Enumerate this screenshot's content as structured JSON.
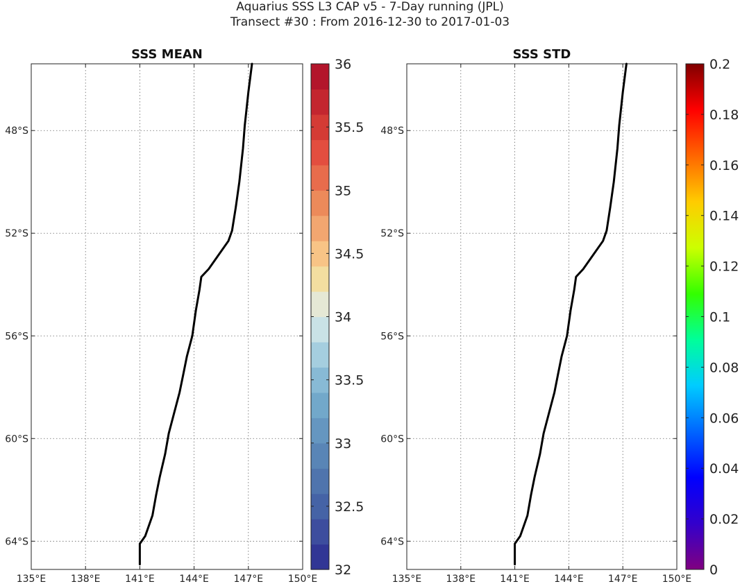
{
  "figure": {
    "title_line1": "Aquarius SSS L3 CAP v5 - 7-Day running (JPL)",
    "title_line2": "Transect #30 : From 2016-12-30 to 2017-01-03"
  },
  "chart_data": [
    {
      "type": "line",
      "title": "SSS MEAN",
      "xlabel": "",
      "ylabel": "",
      "x_ticks": [
        {
          "value": 135,
          "label": "135°E"
        },
        {
          "value": 138,
          "label": "138°E"
        },
        {
          "value": 141,
          "label": "141°E"
        },
        {
          "value": 144,
          "label": "144°E"
        },
        {
          "value": 147,
          "label": "147°E"
        },
        {
          "value": 150,
          "label": "150°E"
        }
      ],
      "y_ticks": [
        {
          "value": -48,
          "label": "48°S"
        },
        {
          "value": -52,
          "label": "52°S"
        },
        {
          "value": -56,
          "label": "56°S"
        },
        {
          "value": -60,
          "label": "60°S"
        },
        {
          "value": -64,
          "label": "64°S"
        }
      ],
      "xlim": [
        135,
        150
      ],
      "ylim": [
        -65.1,
        -45.4
      ],
      "grid": true,
      "series": [
        {
          "color": "#000000",
          "points": [
            [
              147.2,
              -45.4
            ],
            [
              147.0,
              -46.5
            ],
            [
              146.8,
              -47.8
            ],
            [
              146.7,
              -48.7
            ],
            [
              146.5,
              -50.0
            ],
            [
              146.3,
              -51.0
            ],
            [
              146.1,
              -51.9
            ],
            [
              145.9,
              -52.3
            ],
            [
              145.3,
              -52.9
            ],
            [
              144.8,
              -53.4
            ],
            [
              144.4,
              -53.7
            ],
            [
              144.3,
              -54.2
            ],
            [
              144.1,
              -55.0
            ],
            [
              143.9,
              -56.0
            ],
            [
              143.6,
              -56.8
            ],
            [
              143.4,
              -57.5
            ],
            [
              143.2,
              -58.2
            ],
            [
              142.9,
              -59.0
            ],
            [
              142.6,
              -59.8
            ],
            [
              142.4,
              -60.6
            ],
            [
              142.1,
              -61.5
            ],
            [
              141.9,
              -62.2
            ],
            [
              141.7,
              -63.0
            ],
            [
              141.3,
              -63.8
            ],
            [
              141.0,
              -64.1
            ],
            [
              141.0,
              -64.6
            ],
            [
              141.0,
              -64.9
            ]
          ]
        }
      ],
      "colorbar": {
        "colormap": "discrete diverging blue-white-red",
        "min": 32,
        "max": 36,
        "step": 0.2,
        "tick_labels": [
          "32",
          "32.5",
          "33",
          "33.5",
          "34",
          "34.5",
          "35",
          "35.5",
          "36"
        ],
        "colors": [
          "#313695",
          "#3d4d9e",
          "#4563a6",
          "#4f74ad",
          "#5985b6",
          "#6596c0",
          "#72a8ca",
          "#88bad5",
          "#a5cedf",
          "#c9e2e6",
          "#e5e8d5",
          "#f3dea0",
          "#f8c486",
          "#f2a670",
          "#ec8a5a",
          "#e86c4c",
          "#e34e3f",
          "#d43b35",
          "#c3262f",
          "#b3152b"
        ]
      }
    },
    {
      "type": "line",
      "title": "SSS STD",
      "xlabel": "",
      "ylabel": "",
      "x_ticks": [
        {
          "value": 135,
          "label": "135°E"
        },
        {
          "value": 138,
          "label": "138°E"
        },
        {
          "value": 141,
          "label": "141°E"
        },
        {
          "value": 144,
          "label": "144°E"
        },
        {
          "value": 147,
          "label": "147°E"
        },
        {
          "value": 150,
          "label": "150°E"
        }
      ],
      "y_ticks": [
        {
          "value": -48,
          "label": "48°S"
        },
        {
          "value": -52,
          "label": "52°S"
        },
        {
          "value": -56,
          "label": "56°S"
        },
        {
          "value": -60,
          "label": "60°S"
        },
        {
          "value": -64,
          "label": "64°S"
        }
      ],
      "xlim": [
        135,
        150
      ],
      "ylim": [
        -65.1,
        -45.4
      ],
      "grid": true,
      "series": [
        {
          "color": "#000000",
          "points": [
            [
              147.2,
              -45.4
            ],
            [
              147.0,
              -46.5
            ],
            [
              146.8,
              -47.8
            ],
            [
              146.7,
              -48.7
            ],
            [
              146.5,
              -50.0
            ],
            [
              146.3,
              -51.0
            ],
            [
              146.1,
              -51.9
            ],
            [
              145.9,
              -52.3
            ],
            [
              145.3,
              -52.9
            ],
            [
              144.8,
              -53.4
            ],
            [
              144.4,
              -53.7
            ],
            [
              144.3,
              -54.2
            ],
            [
              144.1,
              -55.0
            ],
            [
              143.9,
              -56.0
            ],
            [
              143.6,
              -56.8
            ],
            [
              143.4,
              -57.5
            ],
            [
              143.2,
              -58.2
            ],
            [
              142.9,
              -59.0
            ],
            [
              142.6,
              -59.8
            ],
            [
              142.4,
              -60.6
            ],
            [
              142.1,
              -61.5
            ],
            [
              141.9,
              -62.2
            ],
            [
              141.7,
              -63.0
            ],
            [
              141.3,
              -63.8
            ],
            [
              141.0,
              -64.1
            ],
            [
              141.0,
              -64.6
            ],
            [
              141.0,
              -64.9
            ]
          ]
        }
      ],
      "colorbar": {
        "colormap": "jet",
        "min": 0,
        "max": 0.2,
        "tick_labels": [
          "0",
          "0.02",
          "0.04",
          "0.06",
          "0.08",
          "0.1",
          "0.12",
          "0.14",
          "0.16",
          "0.18",
          "0.2"
        ],
        "gradient_stops": [
          "#800080",
          "#3300cc",
          "#0000ff",
          "#0066ff",
          "#00ccff",
          "#00ff99",
          "#33ff00",
          "#ccff00",
          "#ffcc00",
          "#ff6600",
          "#ff0000",
          "#800000"
        ]
      }
    }
  ]
}
